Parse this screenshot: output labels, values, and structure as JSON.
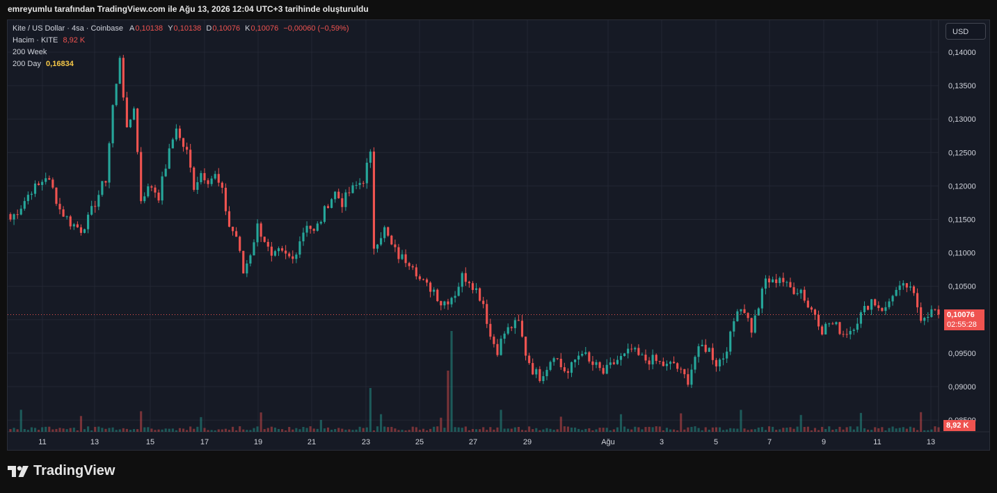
{
  "caption": "emreyumlu tarafından TradingView.com ile Ağu 13, 2026 12:04 UTC+3 tarihinde oluşturuldu",
  "legend": {
    "symbol": "Kite / US Dollar · 4sa · Coinbase",
    "open_label": "A",
    "open": "0,10138",
    "high_label": "Y",
    "high": "0,10138",
    "low_label": "D",
    "low": "0,10076",
    "close_label": "K",
    "close": "0,10076",
    "change": "−0,00060 (−0,59%)",
    "volume_label": "Hacim · KITE",
    "volume": "8,92 K",
    "ma_week_label": "200 Week",
    "ma_day_label": "200 Day",
    "ma_day_value": "0,16834"
  },
  "currency_button": "USD",
  "last_price_tag": {
    "price": "0,10076",
    "countdown": "02:55:28"
  },
  "volume_tag": "8,92 K",
  "brand": "TradingView",
  "colors": {
    "up": "#26a69a",
    "down": "#ef5350",
    "ma_day": "#f7c948",
    "background": "#161a25"
  },
  "chart_data": {
    "type": "candlestick",
    "interval": "4h",
    "y_axis": {
      "ticks": [
        "0,14000",
        "0,13500",
        "0,13000",
        "0,12500",
        "0,12000",
        "0,11500",
        "0,11000",
        "0,10500",
        "0,10000",
        "0,09500",
        "0,09000",
        "0,08500"
      ],
      "tick_values": [
        0.14,
        0.135,
        0.13,
        0.125,
        0.12,
        0.115,
        0.11,
        0.105,
        0.1,
        0.095,
        0.09,
        0.085
      ],
      "range": [
        0.0845,
        0.1425
      ]
    },
    "x_axis": {
      "ticks": [
        "11",
        "13",
        "15",
        "17",
        "19",
        "21",
        "23",
        "25",
        "27",
        "29",
        "Ağu",
        "3",
        "5",
        "7",
        "9",
        "11",
        "13"
      ]
    },
    "anchors": [
      [
        0,
        0.115
      ],
      [
        3,
        0.117
      ],
      [
        6,
        0.1195
      ],
      [
        8,
        0.12
      ],
      [
        10,
        0.1215
      ],
      [
        12,
        0.1195
      ],
      [
        14,
        0.1165
      ],
      [
        17,
        0.1145
      ],
      [
        20,
        0.1135
      ],
      [
        22,
        0.115
      ],
      [
        24,
        0.1175
      ],
      [
        26,
        0.12
      ],
      [
        27,
        0.121
      ],
      [
        29,
        0.132
      ],
      [
        30,
        0.135
      ],
      [
        31,
        0.1395
      ],
      [
        33,
        0.128
      ],
      [
        34,
        0.13
      ],
      [
        35,
        0.132
      ],
      [
        37,
        0.118
      ],
      [
        38,
        0.119
      ],
      [
        40,
        0.12
      ],
      [
        42,
        0.1185
      ],
      [
        44,
        0.123
      ],
      [
        47,
        0.129
      ],
      [
        48,
        0.127
      ],
      [
        50,
        0.125
      ],
      [
        52,
        0.12
      ],
      [
        54,
        0.122
      ],
      [
        56,
        0.121
      ],
      [
        58,
        0.1215
      ],
      [
        60,
        0.119
      ],
      [
        62,
        0.114
      ],
      [
        64,
        0.1125
      ],
      [
        66,
        0.107
      ],
      [
        68,
        0.11
      ],
      [
        70,
        0.114
      ],
      [
        72,
        0.112
      ],
      [
        74,
        0.109
      ],
      [
        76,
        0.11
      ],
      [
        78,
        0.1095
      ],
      [
        80,
        0.109
      ],
      [
        82,
        0.112
      ],
      [
        84,
        0.1145
      ],
      [
        86,
        0.113
      ],
      [
        88,
        0.115
      ],
      [
        90,
        0.1175
      ],
      [
        92,
        0.119
      ],
      [
        94,
        0.1175
      ],
      [
        96,
        0.119
      ],
      [
        98,
        0.12
      ],
      [
        100,
        0.121
      ],
      [
        101,
        0.123
      ],
      [
        102,
        0.1245
      ],
      [
        103,
        0.111
      ],
      [
        104,
        0.112
      ],
      [
        106,
        0.1135
      ],
      [
        108,
        0.111
      ],
      [
        110,
        0.1095
      ],
      [
        112,
        0.109
      ],
      [
        114,
        0.1085
      ],
      [
        116,
        0.106
      ],
      [
        118,
        0.105
      ],
      [
        120,
        0.1045
      ],
      [
        122,
        0.1025
      ],
      [
        124,
        0.103
      ],
      [
        126,
        0.104
      ],
      [
        128,
        0.1065
      ],
      [
        130,
        0.106
      ],
      [
        132,
        0.1045
      ],
      [
        134,
        0.1025
      ],
      [
        136,
        0.0975
      ],
      [
        138,
        0.0955
      ],
      [
        140,
        0.098
      ],
      [
        142,
        0.099
      ],
      [
        144,
        0.0995
      ],
      [
        146,
        0.095
      ],
      [
        148,
        0.0925
      ],
      [
        150,
        0.0915
      ],
      [
        152,
        0.093
      ],
      [
        154,
        0.095
      ],
      [
        156,
        0.093
      ],
      [
        158,
        0.092
      ],
      [
        160,
        0.094
      ],
      [
        162,
        0.0955
      ],
      [
        164,
        0.0935
      ],
      [
        166,
        0.093
      ],
      [
        168,
        0.092
      ],
      [
        170,
        0.093
      ],
      [
        172,
        0.094
      ],
      [
        174,
        0.0945
      ],
      [
        176,
        0.0955
      ],
      [
        178,
        0.0945
      ],
      [
        180,
        0.094
      ],
      [
        182,
        0.094
      ],
      [
        184,
        0.0935
      ],
      [
        186,
        0.093
      ],
      [
        188,
        0.0935
      ],
      [
        190,
        0.092
      ],
      [
        192,
        0.091
      ],
      [
        194,
        0.0945
      ],
      [
        196,
        0.096
      ],
      [
        198,
        0.0955
      ],
      [
        200,
        0.0935
      ],
      [
        202,
        0.0945
      ],
      [
        204,
        0.0975
      ],
      [
        206,
        0.102
      ],
      [
        208,
        0.1015
      ],
      [
        210,
        0.0985
      ],
      [
        212,
        0.102
      ],
      [
        214,
        0.106
      ],
      [
        216,
        0.1055
      ],
      [
        218,
        0.1065
      ],
      [
        220,
        0.105
      ],
      [
        222,
        0.1045
      ],
      [
        224,
        0.1045
      ],
      [
        226,
        0.102
      ],
      [
        228,
        0.101
      ],
      [
        230,
        0.0985
      ],
      [
        232,
        0.0995
      ],
      [
        234,
        0.099
      ],
      [
        236,
        0.098
      ],
      [
        238,
        0.0985
      ],
      [
        240,
        0.1
      ],
      [
        242,
        0.1015
      ],
      [
        244,
        0.103
      ],
      [
        246,
        0.102
      ],
      [
        248,
        0.1015
      ],
      [
        250,
        0.104
      ],
      [
        252,
        0.1045
      ],
      [
        254,
        0.105
      ],
      [
        256,
        0.1035
      ],
      [
        258,
        0.1005
      ],
      [
        260,
        0.101
      ],
      [
        262,
        0.1014
      ],
      [
        263,
        0.10076
      ]
    ],
    "volume_bar_count": 264,
    "current_price": 0.10076
  }
}
